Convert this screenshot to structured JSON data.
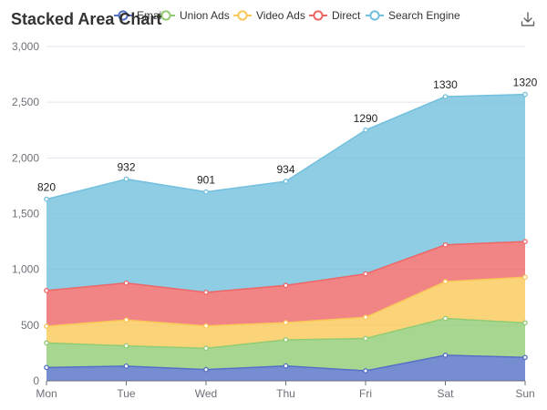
{
  "chart_data": {
    "type": "area",
    "stacked": true,
    "title": "Stacked Area Chart",
    "categories": [
      "Mon",
      "Tue",
      "Wed",
      "Thu",
      "Fri",
      "Sat",
      "Sun"
    ],
    "ylim": [
      0,
      3000
    ],
    "yticks": [
      0,
      500,
      1000,
      1500,
      2000,
      2500,
      3000
    ],
    "ytick_labels": [
      "0",
      "500",
      "1,000",
      "1,500",
      "2,000",
      "2,500",
      "3,000"
    ],
    "grid": true,
    "legend_position": "top",
    "series": [
      {
        "name": "Email",
        "color": "#5470c6",
        "values": [
          120,
          132,
          101,
          134,
          90,
          230,
          210
        ]
      },
      {
        "name": "Union Ads",
        "color": "#91cc75",
        "values": [
          220,
          182,
          191,
          234,
          290,
          330,
          310
        ]
      },
      {
        "name": "Video Ads",
        "color": "#fac858",
        "values": [
          150,
          232,
          201,
          154,
          190,
          330,
          410
        ]
      },
      {
        "name": "Direct",
        "color": "#ee6666",
        "values": [
          320,
          332,
          301,
          334,
          390,
          330,
          320
        ]
      },
      {
        "name": "Search Engine",
        "color": "#73c0de",
        "values": [
          820,
          932,
          901,
          934,
          1290,
          1330,
          1320
        ]
      }
    ],
    "top_series_labels": true
  },
  "toolbar": {
    "download_icon": "download-icon"
  }
}
